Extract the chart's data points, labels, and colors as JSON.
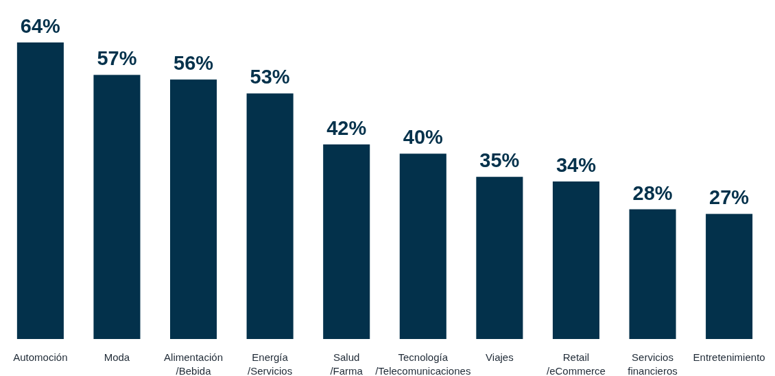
{
  "chart_data": {
    "type": "bar",
    "categories": [
      "Automoción",
      "Moda",
      "Alimentación\n/Bebida",
      "Energía\n/Servicios",
      "Salud\n/Farma",
      "Tecnología\n/Telecomunicaciones",
      "Viajes",
      "Retail\n/eCommerce",
      "Servicios\nfinancieros",
      "Entretenimiento"
    ],
    "values": [
      64,
      57,
      56,
      53,
      42,
      40,
      35,
      34,
      28,
      27
    ],
    "value_labels": [
      "64%",
      "57%",
      "56%",
      "53%",
      "42%",
      "40%",
      "35%",
      "34%",
      "28%",
      "27%"
    ],
    "color": "#03314b"
  }
}
